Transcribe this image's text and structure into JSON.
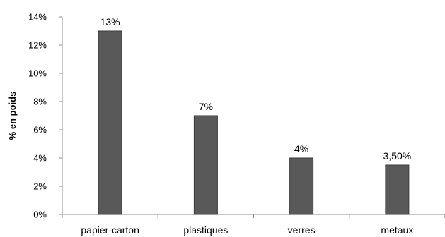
{
  "chart_data": {
    "type": "bar",
    "categories": [
      "papier-carton",
      "plastiques",
      "verres",
      "metaux"
    ],
    "values": [
      13,
      7,
      4,
      3.5
    ],
    "data_labels": [
      "13%",
      "7%",
      "4%",
      "3,50%"
    ],
    "ylabel": "% en poids",
    "xlabel": "",
    "title": "",
    "ylim": [
      0,
      14
    ],
    "yticks": [
      0,
      2,
      4,
      6,
      8,
      10,
      12,
      14
    ],
    "ytick_labels": [
      "0%",
      "2%",
      "4%",
      "6%",
      "8%",
      "10%",
      "12%",
      "14%"
    ],
    "grid": false,
    "legend": "none",
    "bar_color": "#595959",
    "bar_edge_color": "#3a3a3a",
    "axis_color": "#8c8c8c"
  }
}
